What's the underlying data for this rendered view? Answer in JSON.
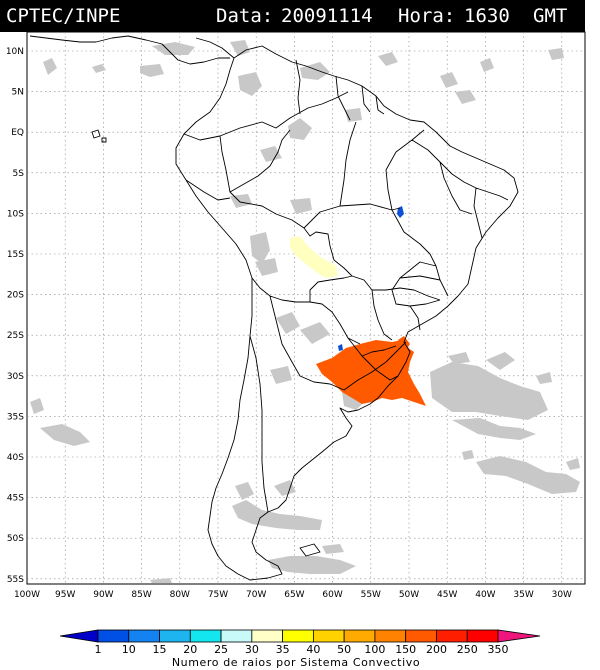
{
  "header": {
    "agency": "CPTEC/INPE",
    "data_label": "Data:",
    "date": "20091114",
    "hora_label": "Hora:",
    "time": "1630",
    "tz": "GMT"
  },
  "map": {
    "lat_labels": [
      "10N",
      "5N",
      "EQ",
      "5S",
      "10S",
      "15S",
      "20S",
      "25S",
      "30S",
      "35S",
      "40S",
      "45S",
      "50S",
      "55S"
    ],
    "lon_labels": [
      "100W",
      "95W",
      "90W",
      "85W",
      "80W",
      "75W",
      "70W",
      "65W",
      "60W",
      "55W",
      "50W",
      "45W",
      "40W",
      "35W",
      "30W"
    ],
    "lon_range": [
      -100,
      -27
    ],
    "lat_range": [
      -56,
      12
    ],
    "grid": true,
    "colors": {
      "cloud_gray": "#c8c8c8",
      "storm_orange": "#ff5a00",
      "light_yellow": "#ffffc0",
      "blue": "#0a50d8"
    }
  },
  "colorbar": {
    "ticks": [
      "1",
      "10",
      "15",
      "20",
      "25",
      "30",
      "35",
      "40",
      "50",
      "100",
      "150",
      "200",
      "250",
      "350"
    ],
    "colors": [
      "#0000c8",
      "#0050e6",
      "#1482f0",
      "#1eb4f0",
      "#14e6f0",
      "#c8fafa",
      "#ffffc8",
      "#ffff00",
      "#ffd200",
      "#ffaa00",
      "#ff8200",
      "#ff5a00",
      "#ff1e00",
      "#ff0000",
      "#f0147d"
    ],
    "caption": "Numero de raios por Sistema Convectivo"
  }
}
